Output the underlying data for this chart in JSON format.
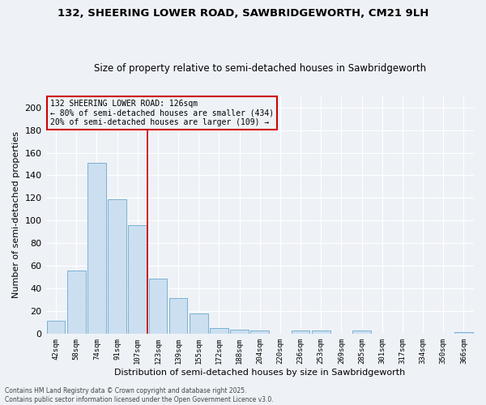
{
  "title1": "132, SHEERING LOWER ROAD, SAWBRIDGEWORTH, CM21 9LH",
  "title2": "Size of property relative to semi-detached houses in Sawbridgeworth",
  "xlabel": "Distribution of semi-detached houses by size in Sawbridgeworth",
  "ylabel": "Number of semi-detached properties",
  "categories": [
    "42sqm",
    "58sqm",
    "74sqm",
    "91sqm",
    "107sqm",
    "123sqm",
    "139sqm",
    "155sqm",
    "172sqm",
    "188sqm",
    "204sqm",
    "220sqm",
    "236sqm",
    "253sqm",
    "269sqm",
    "285sqm",
    "301sqm",
    "317sqm",
    "334sqm",
    "350sqm",
    "366sqm"
  ],
  "values": [
    12,
    56,
    151,
    119,
    96,
    49,
    32,
    18,
    5,
    4,
    3,
    0,
    3,
    3,
    0,
    3,
    0,
    0,
    0,
    0,
    2
  ],
  "bar_color": "#ccdff0",
  "bar_edge_color": "#7ab0d4",
  "vline_x_idx": 5,
  "vline_color": "#cc0000",
  "annotation_title": "132 SHEERING LOWER ROAD: 126sqm",
  "annotation_line1": "← 80% of semi-detached houses are smaller (434)",
  "annotation_line2": "20% of semi-detached houses are larger (109) →",
  "annotation_box_color": "#cc0000",
  "ylim": [
    0,
    210
  ],
  "yticks": [
    0,
    20,
    40,
    60,
    80,
    100,
    120,
    140,
    160,
    180,
    200
  ],
  "footer1": "Contains HM Land Registry data © Crown copyright and database right 2025.",
  "footer2": "Contains public sector information licensed under the Open Government Licence v3.0.",
  "bg_color": "#eef2f7"
}
